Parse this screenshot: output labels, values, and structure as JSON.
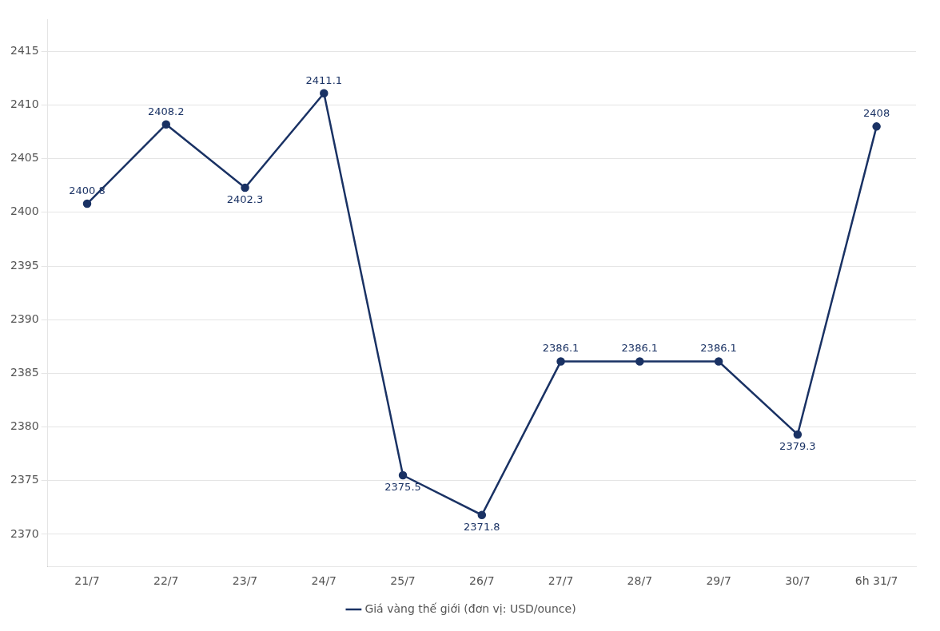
{
  "chart_data": {
    "type": "line",
    "categories": [
      "21/7",
      "22/7",
      "23/7",
      "24/7",
      "25/7",
      "26/7",
      "27/7",
      "28/7",
      "29/7",
      "30/7",
      "6h 31/7"
    ],
    "series": [
      {
        "name": "Giá vàng thế giới (đơn vị: USD/ounce)",
        "color": "#1a3264",
        "marker": "circle",
        "values": [
          2400.8,
          2408.2,
          2402.3,
          2411.1,
          2375.5,
          2371.8,
          2386.1,
          2386.1,
          2386.1,
          2379.3,
          2408.0
        ]
      }
    ],
    "ylim": [
      2367,
      2418
    ],
    "yticks": [
      2370,
      2375,
      2380,
      2385,
      2390,
      2395,
      2400,
      2405,
      2410,
      2415
    ],
    "grid": true,
    "legend": "bottom",
    "data_labels": true
  }
}
